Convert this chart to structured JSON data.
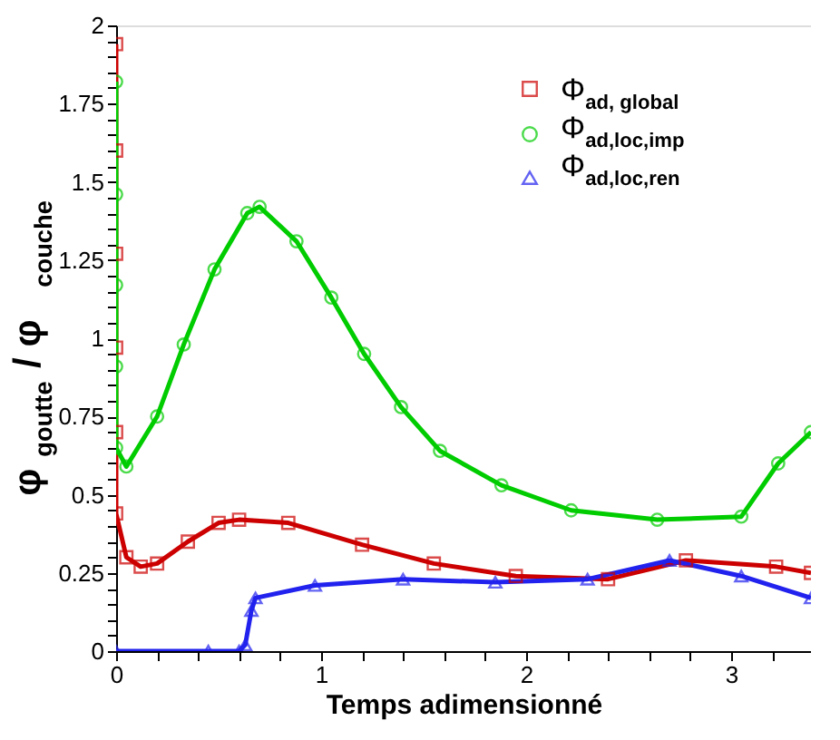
{
  "chart_data": {
    "type": "line",
    "xlabel": "Temps adimensionné",
    "ylabel": "φ$_{goutte}$ / φ$_{couche}$",
    "xlim": [
      0,
      3.39
    ],
    "ylim": [
      0,
      2
    ],
    "xticks": [
      0,
      {
        "value": 0.2,
        "label": null
      },
      {
        "value": 0.4,
        "label": null
      },
      {
        "value": 0.6,
        "label": null
      },
      {
        "value": 0.8,
        "label": null
      },
      1,
      {
        "value": 1.2,
        "label": null
      },
      {
        "value": 1.4,
        "label": null
      },
      {
        "value": 1.6,
        "label": null
      },
      {
        "value": 1.8,
        "label": null
      },
      2,
      {
        "value": 2.2,
        "label": null
      },
      {
        "value": 2.4,
        "label": null
      },
      {
        "value": 2.6,
        "label": null
      },
      {
        "value": 2.8,
        "label": null
      },
      3,
      {
        "value": 3.2,
        "label": null
      }
    ],
    "yticks": [
      0,
      {
        "value": 0.05,
        "label": null
      },
      {
        "value": 0.1,
        "label": null
      },
      {
        "value": 0.15,
        "label": null
      },
      {
        "value": 0.2,
        "label": null
      },
      0.25,
      {
        "value": 0.3,
        "label": null
      },
      {
        "value": 0.35,
        "label": null
      },
      {
        "value": 0.4,
        "label": null
      },
      {
        "value": 0.45,
        "label": null
      },
      0.5,
      {
        "value": 0.55,
        "label": null
      },
      {
        "value": 0.6,
        "label": null
      },
      {
        "value": 0.65,
        "label": null
      },
      {
        "value": 0.7,
        "label": null
      },
      0.75,
      {
        "value": 0.8,
        "label": null
      },
      {
        "value": 0.85,
        "label": null
      },
      {
        "value": 0.9,
        "label": null
      },
      {
        "value": 0.95,
        "label": null
      },
      1,
      {
        "value": 1.05,
        "label": null
      },
      {
        "value": 1.1,
        "label": null
      },
      {
        "value": 1.15,
        "label": null
      },
      {
        "value": 1.2,
        "label": null
      },
      1.25,
      {
        "value": 1.3,
        "label": null
      },
      {
        "value": 1.35,
        "label": null
      },
      {
        "value": 1.4,
        "label": null
      },
      {
        "value": 1.45,
        "label": null
      },
      1.5,
      {
        "value": 1.55,
        "label": null
      },
      {
        "value": 1.6,
        "label": null
      },
      {
        "value": 1.65,
        "label": null
      },
      {
        "value": 1.7,
        "label": null
      },
      1.75,
      {
        "value": 1.8,
        "label": null
      },
      {
        "value": 1.85,
        "label": null
      },
      {
        "value": 1.9,
        "label": null
      },
      {
        "value": 1.95,
        "label": null
      },
      2
    ],
    "grid": false,
    "legend": "top right",
    "series": [
      {
        "name": "Φ$_{ad, global}$",
        "color": "#cc0000",
        "marker": "square",
        "x": [
          0,
          0,
          0,
          0,
          0,
          0,
          0.05,
          0.12,
          0.2,
          0.35,
          0.5,
          0.6,
          0.84,
          1.2,
          1.55,
          1.95,
          2.4,
          2.78,
          3.22,
          3.39
        ],
        "values": [
          1.94,
          1.6,
          1.27,
          0.97,
          0.7,
          0.44,
          0.3,
          0.27,
          0.28,
          0.35,
          0.41,
          0.42,
          0.41,
          0.34,
          0.28,
          0.24,
          0.23,
          0.29,
          0.27,
          0.25
        ]
      },
      {
        "name": "Φ$_{ad,loc,imp}$",
        "color": "#00cc00",
        "marker": "circle",
        "x": [
          0,
          0,
          0,
          0,
          0,
          0.05,
          0.2,
          0.33,
          0.48,
          0.64,
          0.7,
          0.88,
          1.05,
          1.21,
          1.39,
          1.58,
          1.88,
          2.22,
          2.64,
          3.05,
          3.23,
          3.39
        ],
        "values": [
          1.82,
          1.46,
          1.17,
          0.91,
          0.65,
          0.59,
          0.75,
          0.98,
          1.22,
          1.4,
          1.42,
          1.31,
          1.13,
          0.95,
          0.78,
          0.64,
          0.53,
          0.45,
          0.42,
          0.43,
          0.6,
          0.7
        ]
      },
      {
        "name": "Φ$_{ad,loc,ren}$",
        "color": "#2222ee",
        "marker": "triangle",
        "x": [
          0,
          0.45,
          0.6,
          0.63,
          0.66,
          0.68,
          0.97,
          1.4,
          1.85,
          2.3,
          2.7,
          3.05,
          3.39
        ],
        "values": [
          0,
          0,
          0,
          0.02,
          0.13,
          0.17,
          0.21,
          0.23,
          0.22,
          0.23,
          0.29,
          0.24,
          0.17
        ]
      }
    ]
  }
}
